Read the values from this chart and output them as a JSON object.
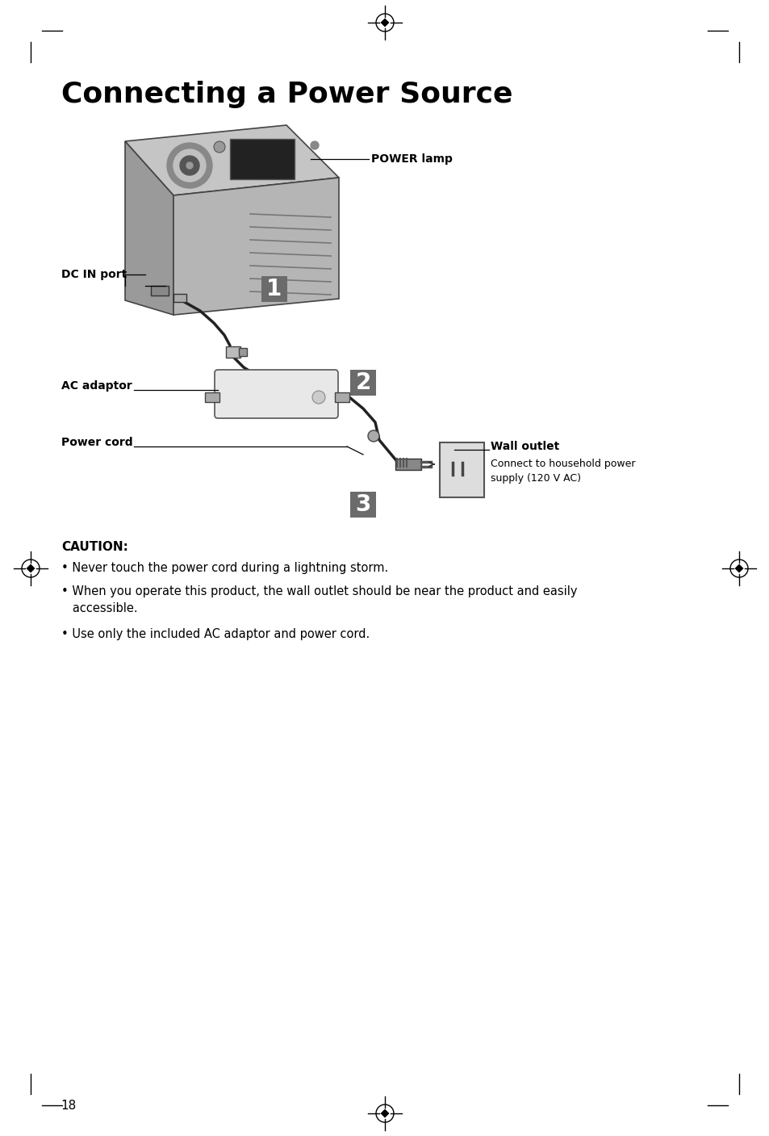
{
  "title": "Connecting a Power Source",
  "bg": "#ffffff",
  "title_fontsize": 26,
  "page_number": "18",
  "labels": {
    "power_lamp": "POWER lamp",
    "dc_in_port": "DC IN port",
    "ac_adaptor": "AC adaptor",
    "power_cord": "Power cord",
    "wall_outlet": "Wall outlet",
    "wall_outlet_sub": "Connect to household power\nsupply (120 V AC)"
  },
  "steps": [
    "1",
    "2",
    "3"
  ],
  "caution_title": "CAUTION:",
  "caution_bullets": [
    "Never touch the power cord during a lightning storm.",
    "When you operate this product, the wall outlet should be near the product and easily\n   accessible.",
    "Use only the included AC adaptor and power cord."
  ],
  "step_badge_color": "#6b6b6b",
  "cable_color": "#222222",
  "device_top_color": "#c0c0c0",
  "device_left_color": "#a0a0a0",
  "device_right_color": "#b0b0b0",
  "label_fontsize": 10,
  "caution_fontsize": 10.5
}
